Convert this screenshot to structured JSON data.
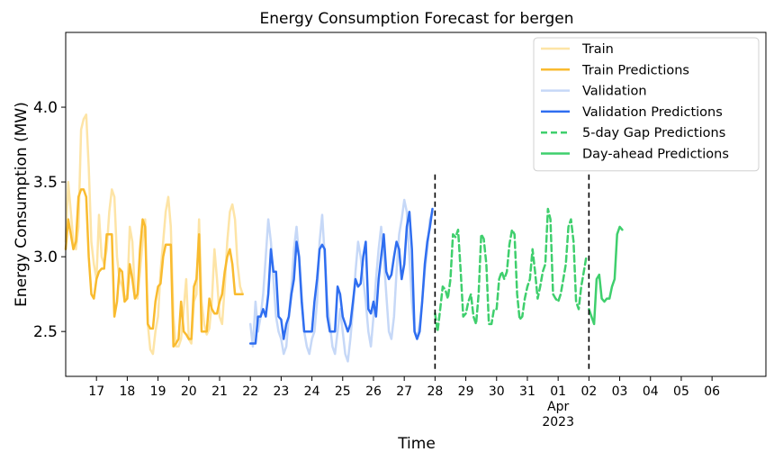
{
  "chart_data": {
    "type": "line",
    "title": "Energy Consumption Forecast for bergen",
    "xlabel": "Time",
    "ylabel": "Energy Consumption (MW)",
    "xlim": [
      "2023-03-16T00:00",
      "2023-04-07T18:00"
    ],
    "ylim": [
      2.2,
      4.5
    ],
    "yticks": [
      2.5,
      3.0,
      3.5,
      4.0
    ],
    "ytick_labels": [
      "2.5",
      "3.0",
      "3.5",
      "4.0"
    ],
    "xticks": [
      {
        "date": "2023-03-17",
        "label": "17"
      },
      {
        "date": "2023-03-18",
        "label": "18"
      },
      {
        "date": "2023-03-19",
        "label": "19"
      },
      {
        "date": "2023-03-20",
        "label": "20"
      },
      {
        "date": "2023-03-21",
        "label": "21"
      },
      {
        "date": "2023-03-22",
        "label": "22"
      },
      {
        "date": "2023-03-23",
        "label": "23"
      },
      {
        "date": "2023-03-24",
        "label": "24"
      },
      {
        "date": "2023-03-25",
        "label": "25"
      },
      {
        "date": "2023-03-26",
        "label": "26"
      },
      {
        "date": "2023-03-27",
        "label": "27"
      },
      {
        "date": "2023-03-28",
        "label": "28"
      },
      {
        "date": "2023-03-29",
        "label": "29"
      },
      {
        "date": "2023-03-30",
        "label": "30"
      },
      {
        "date": "2023-03-31",
        "label": "31"
      },
      {
        "date": "2023-04-01",
        "label": "01",
        "sublabel": "Apr",
        "sublabel2": "2023"
      },
      {
        "date": "2023-04-02",
        "label": "02"
      },
      {
        "date": "2023-04-03",
        "label": "03"
      },
      {
        "date": "2023-04-04",
        "label": "04"
      },
      {
        "date": "2023-04-05",
        "label": "05"
      },
      {
        "date": "2023-04-06",
        "label": "06"
      }
    ],
    "vlines": [
      {
        "date": "2023-03-28",
        "y_range": [
          2.25,
          3.55
        ],
        "style": "dashed",
        "color": "#000000"
      },
      {
        "date": "2023-04-02",
        "y_range": [
          2.25,
          3.55
        ],
        "style": "dashed",
        "color": "#000000"
      }
    ],
    "legend_position": "top-right",
    "grid": false,
    "series": [
      {
        "name": "Train",
        "color": "#fde4a6",
        "style": "solid",
        "width": 2.5,
        "start": "2023-03-16T00:00",
        "points_per_day": 12,
        "values": [
          3.1,
          3.5,
          3.3,
          3.1,
          3.05,
          3.2,
          3.85,
          3.92,
          3.95,
          3.6,
          3.1,
          2.95,
          2.85,
          3.28,
          3.0,
          2.95,
          3.05,
          3.3,
          3.45,
          3.4,
          3.0,
          2.85,
          2.8,
          2.7,
          2.75,
          3.2,
          3.1,
          2.75,
          2.72,
          2.9,
          3.1,
          3.25,
          2.55,
          2.38,
          2.35,
          2.5,
          2.6,
          2.9,
          3.1,
          3.3,
          3.4,
          3.2,
          2.6,
          2.4,
          2.4,
          2.45,
          2.65,
          2.85,
          2.45,
          2.42,
          2.7,
          2.75,
          3.25,
          2.7,
          2.55,
          2.48,
          2.52,
          2.7,
          3.05,
          2.85,
          2.6,
          2.55,
          2.8,
          3.1,
          3.3,
          3.35,
          3.25,
          2.95,
          2.8,
          2.75
        ]
      },
      {
        "name": "Train Predictions",
        "color": "#f9bb2f",
        "style": "solid",
        "width": 2.5,
        "start": "2023-03-16T00:00",
        "points_per_day": 12,
        "values": [
          3.05,
          3.25,
          3.15,
          3.05,
          3.1,
          3.4,
          3.45,
          3.45,
          3.4,
          3.0,
          2.75,
          2.72,
          2.85,
          2.9,
          2.92,
          2.92,
          3.15,
          3.15,
          3.15,
          2.6,
          2.7,
          2.92,
          2.9,
          2.7,
          2.72,
          2.95,
          2.85,
          2.72,
          2.75,
          3.05,
          3.25,
          3.2,
          2.55,
          2.52,
          2.52,
          2.7,
          2.8,
          2.82,
          3.0,
          3.08,
          3.08,
          3.08,
          2.4,
          2.42,
          2.45,
          2.7,
          2.5,
          2.48,
          2.45,
          2.45,
          2.8,
          2.85,
          3.15,
          2.5,
          2.5,
          2.5,
          2.72,
          2.65,
          2.62,
          2.62,
          2.7,
          2.75,
          2.9,
          3.0,
          3.05,
          2.95,
          2.75,
          2.75,
          2.75,
          2.75
        ]
      },
      {
        "name": "Validation",
        "color": "#c6d8f7",
        "style": "solid",
        "width": 2.5,
        "start": "2023-03-22T00:00",
        "points_per_day": 12,
        "values": [
          2.55,
          2.4,
          2.7,
          2.5,
          2.6,
          2.75,
          3.0,
          3.25,
          3.1,
          2.85,
          2.6,
          2.5,
          2.45,
          2.35,
          2.4,
          2.6,
          2.8,
          3.05,
          3.2,
          3.0,
          2.75,
          2.5,
          2.4,
          2.35,
          2.45,
          2.5,
          2.7,
          3.1,
          3.28,
          3.0,
          2.7,
          2.55,
          2.4,
          2.35,
          2.5,
          2.65,
          2.5,
          2.35,
          2.3,
          2.45,
          2.65,
          2.9,
          3.1,
          3.0,
          2.85,
          2.7,
          2.5,
          2.4,
          2.6,
          2.85,
          3.05,
          3.2,
          3.0,
          2.75,
          2.5,
          2.45,
          2.6,
          2.9,
          3.15,
          3.25,
          3.38,
          3.3,
          3.0,
          2.7,
          2.5,
          2.45,
          2.55,
          2.7,
          2.9,
          3.05,
          3.25,
          3.3
        ]
      },
      {
        "name": "Validation Predictions",
        "color": "#2f6ef0",
        "style": "solid",
        "width": 2.5,
        "start": "2023-03-22T00:00",
        "points_per_day": 12,
        "values": [
          2.42,
          2.42,
          2.42,
          2.6,
          2.6,
          2.65,
          2.6,
          2.75,
          3.05,
          2.9,
          2.9,
          2.6,
          2.58,
          2.45,
          2.55,
          2.6,
          2.75,
          2.85,
          3.1,
          3.0,
          2.7,
          2.5,
          2.5,
          2.5,
          2.5,
          2.7,
          2.85,
          3.05,
          3.08,
          3.05,
          2.6,
          2.5,
          2.5,
          2.5,
          2.8,
          2.75,
          2.6,
          2.55,
          2.5,
          2.55,
          2.7,
          2.85,
          2.8,
          2.82,
          3.0,
          3.1,
          2.65,
          2.62,
          2.7,
          2.6,
          2.85,
          3.0,
          3.15,
          2.9,
          2.85,
          2.88,
          3.0,
          3.1,
          3.05,
          2.85,
          2.95,
          3.2,
          3.3,
          3.05,
          2.5,
          2.45,
          2.5,
          2.7,
          2.95,
          3.1,
          3.2,
          3.32
        ]
      },
      {
        "name": "5-day Gap Predictions",
        "color": "#3fcf6d",
        "style": "dashed",
        "width": 2.5,
        "start": "2023-03-28T00:00",
        "points_per_day": 12,
        "values": [
          2.62,
          2.5,
          2.65,
          2.8,
          2.78,
          2.72,
          2.85,
          3.15,
          3.13,
          3.18,
          2.9,
          2.6,
          2.62,
          2.7,
          2.75,
          2.6,
          2.55,
          2.75,
          3.15,
          3.12,
          2.95,
          2.55,
          2.55,
          2.65,
          2.65,
          2.85,
          2.9,
          2.85,
          2.9,
          3.08,
          3.18,
          3.15,
          2.75,
          2.58,
          2.6,
          2.72,
          2.8,
          2.85,
          3.05,
          2.9,
          2.72,
          2.8,
          2.9,
          2.95,
          3.32,
          3.25,
          2.75,
          2.72,
          2.7,
          2.75,
          2.85,
          2.95,
          3.2,
          3.25,
          3.1,
          2.7,
          2.65,
          2.8,
          2.9,
          3.0
        ]
      },
      {
        "name": "Day-ahead Predictions",
        "color": "#3fcf6d",
        "style": "solid",
        "width": 2.5,
        "start": "2023-04-02T00:00",
        "points_per_day": 12,
        "values": [
          2.65,
          2.6,
          2.55,
          2.85,
          2.88,
          2.72,
          2.7,
          2.72,
          2.72,
          2.8,
          2.85,
          3.15,
          3.2,
          3.18
        ]
      }
    ]
  }
}
